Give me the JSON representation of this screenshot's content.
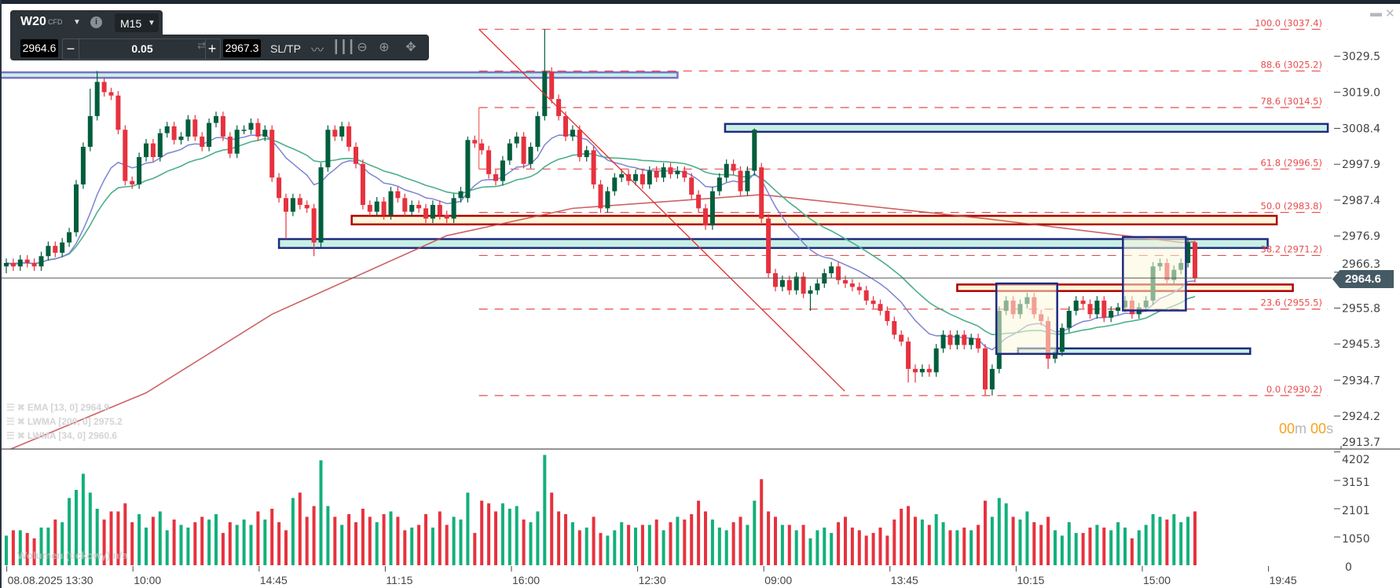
{
  "toolbar": {
    "symbol": "W20",
    "symbol_type": "CFD",
    "timeframe": "M15",
    "bid": "2964.6",
    "ask": "2967.3",
    "quantity": "0.05",
    "minus_label": "−",
    "plus_label": "+",
    "sltp_label": "SL/TP",
    "info_label": "i",
    "icons": [
      "line-chart-icon",
      "candlestick-icon",
      "zoom-out-icon",
      "zoom-in-icon",
      "move-icon"
    ]
  },
  "window_controls": {
    "minimize": "▬",
    "close": "✕"
  },
  "legend": [
    {
      "label": "EMA [13, 0] 2964.9"
    },
    {
      "label": "LWMA [200, 0] 2975.2"
    },
    {
      "label": "LWMA [34, 0] 2960.6"
    }
  ],
  "volume_watermark": "Wolumen (tickowy) n/a",
  "countdown": {
    "minutes": "00",
    "m": "m",
    "seconds": "00",
    "s": "s"
  },
  "current_price": "2964.6",
  "colors": {
    "bull": "#005e3c",
    "bear": "#e6323e",
    "vol_bull": "#12b07a",
    "vol_bear": "#e6323e",
    "ema13": "#7c84d2",
    "lwma34": "#4caf8a",
    "lwma200": "#c4474a",
    "fib": "#e84c4c",
    "zone_cyan": "#c8f0e4",
    "zone_yellow": "#fcf7da",
    "border_navy": "#1f2a80",
    "border_red": "#b00000",
    "price_tag": "#455a64"
  },
  "chart_data": {
    "type": "candlestick",
    "title": "W20 CFD M15",
    "price_axis": {
      "range": [
        2913.7,
        3037.4
      ],
      "ticks": [
        "3029.5",
        "3019.0",
        "3008.4",
        "2997.9",
        "2987.4",
        "2976.9",
        "2966.3",
        "2955.8",
        "2945.3",
        "2934.7",
        "2924.2",
        "2913.7"
      ]
    },
    "volume_axis": {
      "range": [
        0,
        4202
      ],
      "ticks": [
        "4202",
        "3151",
        "2101",
        "1050",
        "0"
      ]
    },
    "time_axis": {
      "ticks": [
        "08.08.2025 13:30",
        "10:00",
        "14:45",
        "11:15",
        "16:00",
        "12:30",
        "09:00",
        "13:45",
        "10:15",
        "15:00",
        "19:45"
      ],
      "candles_per_tick": 18
    },
    "first_open": 2968,
    "close": [
      2969,
      2968,
      2970,
      2969,
      2968,
      2971,
      2974,
      2972,
      2975,
      2978,
      2992,
      3003,
      3012,
      3022,
      3019,
      3018,
      3008,
      2993,
      2992,
      3000,
      3004,
      3000,
      3007,
      3009,
      3005,
      3006,
      3011,
      3006,
      3003,
      3010,
      3012,
      3006,
      3001,
      3008,
      3008,
      3010,
      3006,
      3008,
      2994,
      2988,
      2984,
      2988,
      2986,
      2985,
      2975,
      2997,
      3008,
      3006,
      3009,
      3003,
      2998,
      2986,
      2984,
      2987,
      2983,
      2990,
      2988,
      2984,
      2986,
      2985,
      2982,
      2986,
      2983,
      2982,
      2988,
      2990,
      3005,
      3004,
      3002,
      2995,
      2993,
      2999,
      3004,
      3006,
      2998,
      3003,
      3012,
      3025,
      3017,
      3012,
      3006,
      3008,
      3000,
      3002,
      2992,
      2985,
      2990,
      2994,
      2995,
      2993,
      2995,
      2992,
      2996,
      2994,
      2997,
      2995,
      2996,
      2994,
      2989,
      2985,
      2980,
      2990,
      2994,
      2998,
      2996,
      2990,
      2996,
      3008,
      2982,
      2966,
      2962,
      2964,
      2961,
      2965,
      2960,
      2961,
      2963,
      2966,
      2968,
      2964,
      2963,
      2962,
      2961,
      2958,
      2957,
      2955,
      2952,
      2948,
      2946,
      2938,
      2937,
      2938,
      2937,
      2944,
      2948,
      2945,
      2948,
      2945,
      2947,
      2944,
      2932,
      2938,
      2955,
      2958,
      2954,
      2957,
      2959,
      2954,
      2952,
      2941,
      2943,
      2950,
      2955,
      2958,
      2957,
      2954,
      2958,
      2953,
      2955,
      2956,
      2958,
      2954,
      2956,
      2958,
      2968,
      2969,
      2964,
      2967,
      2969,
      2975,
      2964.6
    ],
    "open_overrides": {
      "66": 2988,
      "108": 2997
    },
    "high_overrides": {
      "12": 3020,
      "13": 3025.2,
      "66": 3006,
      "77": 3037.4,
      "107": 3008.4,
      "169": 2976.5,
      "170": 2975.5
    },
    "low_overrides": {
      "0": 2966,
      "40": 2976,
      "44": 2971,
      "115": 2955,
      "129": 2934,
      "130": 2934,
      "140": 2930.2,
      "141": 2930.2,
      "149": 2938
    },
    "volume": [
      1100,
      1300,
      1300,
      1200,
      1000,
      1400,
      1400,
      1700,
      1600,
      2500,
      2800,
      3400,
      2700,
      2100,
      1700,
      2000,
      2000,
      2300,
      1600,
      1900,
      1400,
      1800,
      2000,
      1300,
      1700,
      1500,
      1400,
      1600,
      1800,
      1700,
      1900,
      1200,
      1600,
      1500,
      1700,
      1500,
      2000,
      1700,
      2100,
      1600,
      1300,
      2500,
      2700,
      1800,
      2200,
      3900,
      2200,
      1800,
      1500,
      1900,
      1600,
      2100,
      1800,
      1600,
      1900,
      2000,
      1800,
      1300,
      1400,
      1500,
      1900,
      1400,
      2000,
      1500,
      1800,
      1700,
      2700,
      1200,
      2400,
      2300,
      2000,
      2300,
      2100,
      2200,
      1700,
      1600,
      2000,
      4100,
      2700,
      2000,
      1900,
      1600,
      1300,
      1400,
      1800,
      1200,
      1100,
      1300,
      1600,
      1500,
      1400,
      1500,
      1500,
      1700,
      1300,
      1600,
      1800,
      1700,
      1900,
      2400,
      2000,
      1700,
      1400,
      1300,
      1600,
      1800,
      1500,
      2400,
      3200,
      2000,
      1800,
      1500,
      1500,
      1300,
      1500,
      1000,
      1300,
      1400,
      1200,
      1600,
      1800,
      1400,
      1300,
      1100,
      1200,
      1400,
      1100,
      1700,
      2100,
      2200,
      1800,
      1700,
      1500,
      1900,
      1600,
      1300,
      1300,
      1400,
      1300,
      1500,
      2400,
      1800,
      2500,
      2300,
      1800,
      1700,
      2000,
      1600,
      1500,
      1800,
      1300,
      1100,
      1600,
      1200,
      1200,
      1400,
      1500,
      1400,
      1300,
      1600,
      1400,
      1000,
      1300,
      1500,
      1900,
      1800,
      1700,
      1900,
      1600,
      1800,
      2000
    ],
    "indicators": {
      "ema": {
        "period": 13,
        "value": 2964.9
      },
      "lwma34": {
        "period": 34,
        "value": 2960.6
      },
      "lwma200": {
        "period": 200,
        "value": 2975.2,
        "samples": [
          [
            0,
            2914
          ],
          [
            20,
            2931
          ],
          [
            38,
            2954
          ],
          [
            63,
            2977
          ],
          [
            81,
            2985
          ],
          [
            108,
            2989
          ],
          [
            140,
            2982
          ],
          [
            168,
            2975
          ],
          [
            170,
            2975.2
          ]
        ]
      }
    },
    "fibonacci": {
      "start_index": 67.6,
      "levels": [
        {
          "label": "100.0 (3037.4)",
          "price": 3037.4
        },
        {
          "label": "88.6 (3025.2)",
          "price": 3025.2
        },
        {
          "label": "78.6 (3014.5)",
          "price": 3014.5
        },
        {
          "label": "61.8 (2996.5)",
          "price": 2996.5
        },
        {
          "label": "50.0 (2983.8)",
          "price": 2983.8
        },
        {
          "label": "38.2 (2971.2)",
          "price": 2971.2
        },
        {
          "label": "23.6 (2955.5)",
          "price": 2955.5
        },
        {
          "label": "0.0 (2930.2)",
          "price": 2930.2
        }
      ]
    },
    "trendline": {
      "from": [
        67.6,
        3037.4
      ],
      "to": [
        119.9,
        2931.5
      ]
    },
    "zones": [
      {
        "kind": "cyan",
        "from": -1,
        "to": 96,
        "top": 3024.8,
        "bottom": 3023.2,
        "border": "#7b6fc8"
      },
      {
        "kind": "cyan",
        "from": 102.8,
        "to": 189,
        "top": 3009.7,
        "bottom": 3007.4,
        "border": "#1f2a80"
      },
      {
        "kind": "yellow",
        "from": 49.4,
        "to": 181.7,
        "top": 2982.8,
        "bottom": 2980.3,
        "border": "#b00000"
      },
      {
        "kind": "cyan",
        "from": 39,
        "to": 180.4,
        "top": 2976.0,
        "bottom": 2973.4,
        "border": "#1f2a80"
      },
      {
        "kind": "yellow",
        "from": 136,
        "to": 184,
        "top": 2962.7,
        "bottom": 2960.8,
        "border": "#b00000"
      },
      {
        "kind": "cyan",
        "from": 144.7,
        "to": 177.9,
        "top": 2944.0,
        "bottom": 2942.4,
        "border": "#1f2a80"
      },
      {
        "kind": "yellow",
        "from": 141.6,
        "to": 150.3,
        "top": 2963.0,
        "bottom": 2942.4,
        "border": "#1f2a80",
        "translucent": true
      },
      {
        "kind": "yellow",
        "from": 159.7,
        "to": 168.7,
        "top": 2976.6,
        "bottom": 2955.1,
        "border": "#1f2a80",
        "translucent": true
      }
    ]
  }
}
